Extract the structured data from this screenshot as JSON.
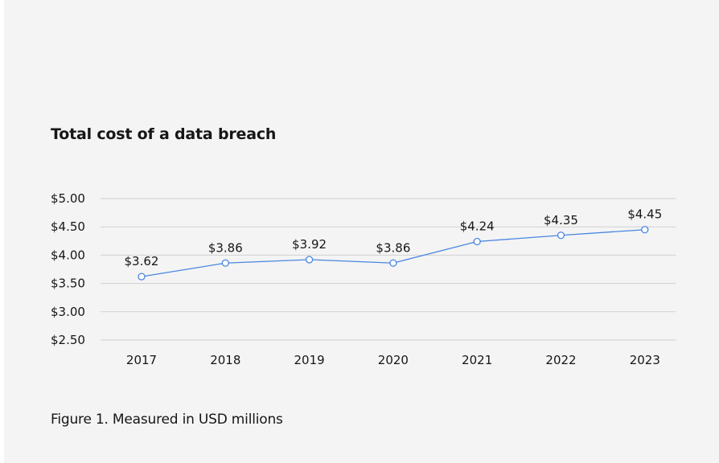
{
  "chart_data": {
    "type": "line",
    "title": "Total cost of a data breach",
    "caption": "Figure 1. Measured in USD millions",
    "categories": [
      "2017",
      "2018",
      "2019",
      "2020",
      "2021",
      "2022",
      "2023"
    ],
    "values": [
      3.62,
      3.86,
      3.92,
      3.86,
      4.24,
      4.35,
      4.45
    ],
    "data_labels": [
      "$3.62",
      "$3.86",
      "$3.92",
      "$3.86",
      "$4.24",
      "$4.35",
      "$4.45"
    ],
    "y_ticks": [
      2.5,
      3.0,
      3.5,
      4.0,
      4.5,
      5.0
    ],
    "y_tick_labels": [
      "$2.50",
      "$3.00",
      "$3.50",
      "$4.00",
      "$4.50",
      "$5.00"
    ],
    "ylim": [
      2.5,
      5.0
    ],
    "grid": true,
    "legend": "none",
    "colors": {
      "line": "#4a86e0",
      "marker_fill": "#ffffff",
      "grid": "#d0d0d0",
      "background": "#f4f4f4"
    }
  }
}
